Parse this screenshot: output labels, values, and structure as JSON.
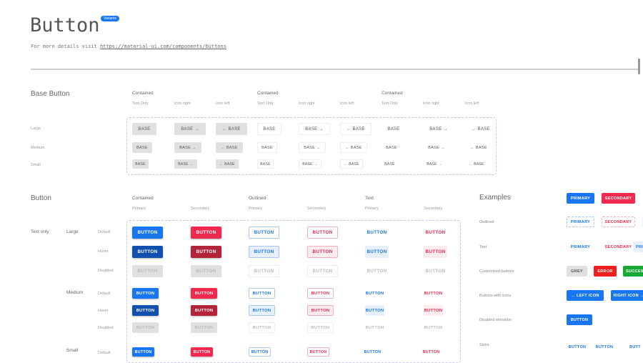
{
  "header": {
    "title": "Button",
    "badge": "Variants",
    "subtitle_prefix": "For more details visit ",
    "link": "https://material-ui.com/components/buttons"
  },
  "base": {
    "title": "Base Button",
    "groups": [
      "Contained",
      "Contained"
    ],
    "columns": [
      "Text Only",
      "Icon right",
      "Icon left",
      "Text Only",
      "Icon right",
      "Icon left",
      "Text Only",
      "Icon right",
      "Icon left"
    ],
    "rows": [
      "Large",
      "Medium",
      "Small"
    ],
    "label": "BASE"
  },
  "button": {
    "title": "Button",
    "groups": [
      "Contained",
      "Outlined",
      "Text"
    ],
    "columns": [
      "Primary",
      "Secondary",
      "Primary",
      "Secondary",
      "Primary",
      "Secondary"
    ],
    "variant": "Text only",
    "sizes": [
      "Large",
      "Medium",
      "Small"
    ],
    "states": [
      "Default",
      "Hover",
      "Disabled"
    ],
    "label": "BUTTON"
  },
  "colors": {
    "primary": "#1976f2",
    "primary_dark": "#1250b0",
    "secondary": "#f2294f",
    "secondary_dark": "#b3233a",
    "disabled": "#e0e0e0",
    "error": "#f01e1e",
    "success": "#18a838"
  },
  "examples": {
    "title": "Examples",
    "rows": [
      {
        "label": "",
        "buttons": [
          "PRIMARY",
          "SECONDARY"
        ]
      },
      {
        "label": "Outlined",
        "buttons": [
          "PRIMARY",
          "SECONDARY",
          "PRI"
        ]
      },
      {
        "label": "Text",
        "buttons": [
          "PRIMARY",
          "SECONDARY",
          "PRI"
        ]
      },
      {
        "label": "Customized buttons",
        "buttons": [
          "GREY",
          "ERROR",
          "SUCCES"
        ]
      },
      {
        "label": "Buttons with icons",
        "buttons": [
          "LEFT ICON",
          "RIGHT ICON"
        ]
      },
      {
        "label": "Disabled elevation",
        "buttons": [
          "BUTTON"
        ]
      },
      {
        "label": "Sizes",
        "buttons": [
          "BUTTON",
          "BUTTON",
          "BUTT"
        ]
      }
    ]
  }
}
